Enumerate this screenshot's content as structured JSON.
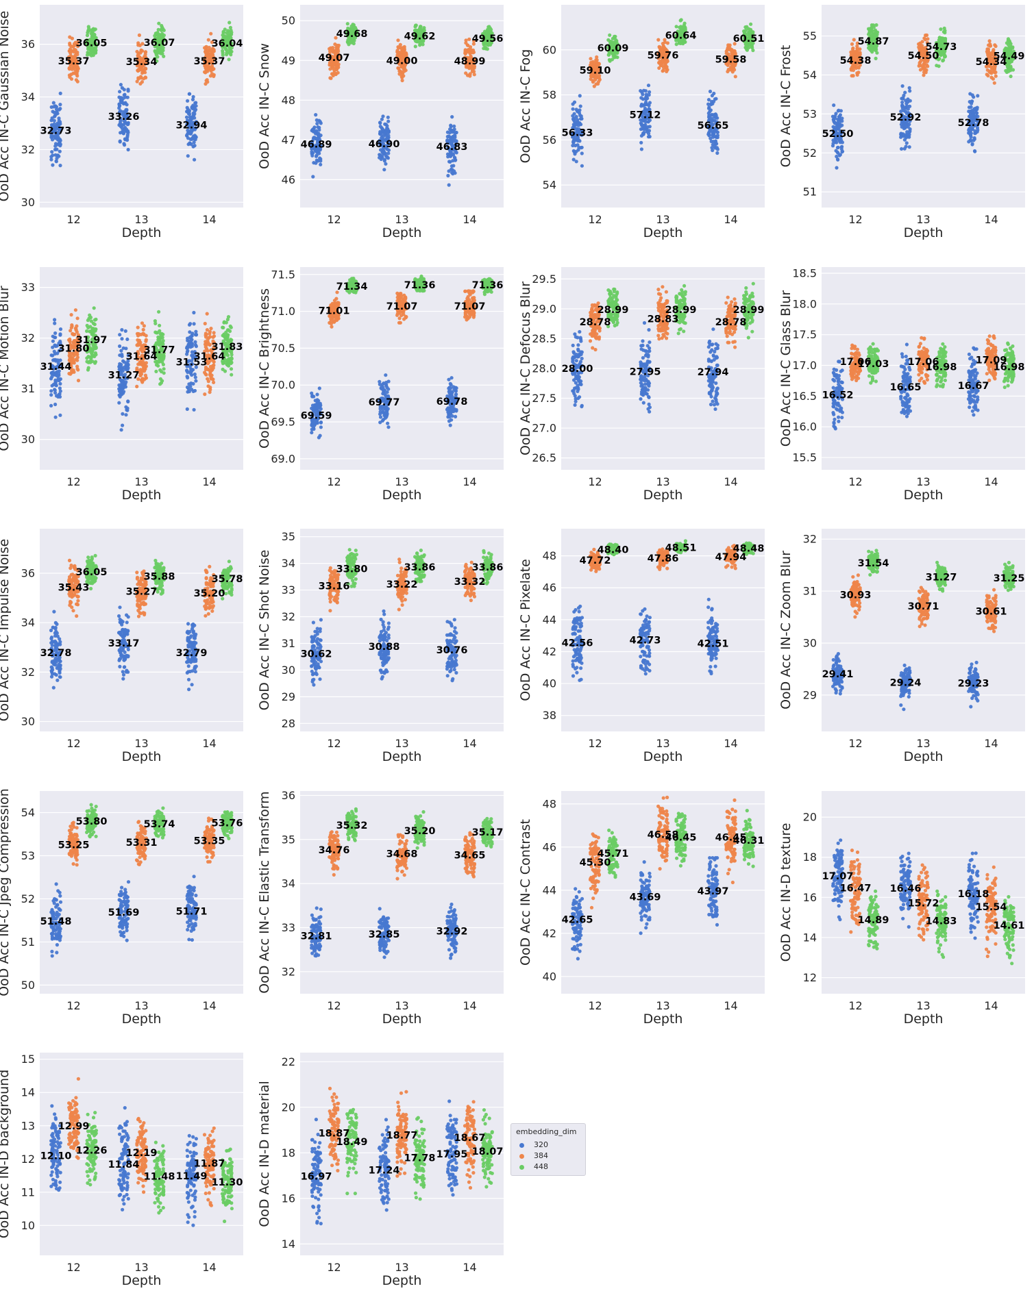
{
  "colors": {
    "d320": "#4878d0",
    "d384": "#ee854a",
    "d448": "#6acc64",
    "panel_bg": "#eaeaf2",
    "grid": "#ffffff"
  },
  "legend": {
    "title": "embedding_dim",
    "items": [
      "320",
      "384",
      "448"
    ]
  },
  "chart_data": [
    {
      "type": "scatter",
      "ylabel": "OoD Acc IN-C Gaussian Noise",
      "xlabel": "Depth",
      "categories": [
        "12",
        "13",
        "14"
      ],
      "ylim": [
        29.8,
        37.5
      ],
      "yticks": [
        30,
        32,
        34,
        36
      ],
      "legend_placement": "outside-right",
      "series": [
        {
          "name": "320",
          "values": [
            32.73,
            33.26,
            32.94
          ],
          "spread": [
            30.0,
            35.1
          ]
        },
        {
          "name": "384",
          "values": [
            35.37,
            35.34,
            35.37
          ],
          "spread": [
            33.6,
            36.9
          ]
        },
        {
          "name": "448",
          "values": [
            36.05,
            36.07,
            36.04
          ],
          "spread": [
            34.6,
            37.3
          ]
        }
      ]
    },
    {
      "type": "scatter",
      "ylabel": "OoD Acc IN-C Snow",
      "xlabel": "Depth",
      "categories": [
        "12",
        "13",
        "14"
      ],
      "ylim": [
        45.3,
        50.4
      ],
      "yticks": [
        46,
        47,
        48,
        49,
        50
      ],
      "series": [
        {
          "name": "320",
          "values": [
            46.89,
            46.9,
            46.83
          ],
          "spread": [
            45.5,
            48.2
          ]
        },
        {
          "name": "384",
          "values": [
            49.07,
            49.0,
            48.99
          ],
          "spread": [
            48.0,
            50.0
          ]
        },
        {
          "name": "448",
          "values": [
            49.68,
            49.62,
            49.56
          ],
          "spread": [
            49.0,
            50.2
          ]
        }
      ]
    },
    {
      "type": "scatter",
      "ylabel": "OoD Acc IN-C Fog",
      "xlabel": "Depth",
      "categories": [
        "12",
        "13",
        "14"
      ],
      "ylim": [
        53.0,
        62.0
      ],
      "yticks": [
        54,
        56,
        58,
        60
      ],
      "series": [
        {
          "name": "320",
          "values": [
            56.33,
            57.12,
            56.65
          ],
          "spread": [
            53.3,
            59.0
          ]
        },
        {
          "name": "384",
          "values": [
            59.1,
            59.76,
            59.58
          ],
          "spread": [
            58.3,
            61.0
          ]
        },
        {
          "name": "448",
          "values": [
            60.09,
            60.64,
            60.51
          ],
          "spread": [
            59.5,
            61.8
          ]
        }
      ]
    },
    {
      "type": "scatter",
      "ylabel": "OoD Acc IN-C Frost",
      "xlabel": "Depth",
      "categories": [
        "12",
        "13",
        "14"
      ],
      "ylim": [
        50.6,
        55.8
      ],
      "yticks": [
        51,
        52,
        53,
        54,
        55
      ],
      "series": [
        {
          "name": "320",
          "values": [
            52.5,
            52.92,
            52.78
          ],
          "spread": [
            50.8,
            53.9
          ]
        },
        {
          "name": "384",
          "values": [
            54.38,
            54.5,
            54.34
          ],
          "spread": [
            53.3,
            55.3
          ]
        },
        {
          "name": "448",
          "values": [
            54.87,
            54.73,
            54.49
          ],
          "spread": [
            53.9,
            55.6
          ]
        }
      ]
    },
    {
      "type": "scatter",
      "ylabel": "OoD Acc IN-C Motion Blur",
      "xlabel": "Depth",
      "categories": [
        "12",
        "13",
        "14"
      ],
      "ylim": [
        29.4,
        33.4
      ],
      "yticks": [
        30,
        31,
        32,
        33
      ],
      "series": [
        {
          "name": "320",
          "values": [
            31.44,
            31.27,
            31.53
          ],
          "spread": [
            29.6,
            33.0
          ]
        },
        {
          "name": "384",
          "values": [
            31.8,
            31.64,
            31.64
          ],
          "spread": [
            30.1,
            32.8
          ]
        },
        {
          "name": "448",
          "values": [
            31.97,
            31.77,
            31.83
          ],
          "spread": [
            30.4,
            32.9
          ]
        }
      ]
    },
    {
      "type": "scatter",
      "ylabel": "OoD Acc IN-C Brightness",
      "xlabel": "Depth",
      "categories": [
        "12",
        "13",
        "14"
      ],
      "ylim": [
        68.85,
        71.6
      ],
      "yticks": [
        69.0,
        69.5,
        70.0,
        70.5,
        71.0,
        71.5
      ],
      "series": [
        {
          "name": "320",
          "values": [
            69.59,
            69.77,
            69.78
          ],
          "spread": [
            68.9,
            70.2
          ]
        },
        {
          "name": "384",
          "values": [
            71.01,
            71.07,
            71.07
          ],
          "spread": [
            70.5,
            71.3
          ]
        },
        {
          "name": "448",
          "values": [
            71.34,
            71.36,
            71.36
          ],
          "spread": [
            71.15,
            71.55
          ]
        }
      ]
    },
    {
      "type": "scatter",
      "ylabel": "OoD Acc IN-C Defocus Blur",
      "xlabel": "Depth",
      "categories": [
        "12",
        "13",
        "14"
      ],
      "ylim": [
        26.3,
        29.7
      ],
      "yticks": [
        26.5,
        27.0,
        27.5,
        28.0,
        28.5,
        29.0,
        29.5
      ],
      "series": [
        {
          "name": "320",
          "values": [
            28.0,
            27.95,
            27.94
          ],
          "spread": [
            26.5,
            29.3
          ]
        },
        {
          "name": "384",
          "values": [
            28.78,
            28.83,
            28.78
          ],
          "spread": [
            27.8,
            29.5
          ]
        },
        {
          "name": "448",
          "values": [
            28.99,
            28.99,
            28.99
          ],
          "spread": [
            28.1,
            29.6
          ]
        }
      ]
    },
    {
      "type": "scatter",
      "ylabel": "OoD Acc IN-C Glass Blur",
      "xlabel": "Depth",
      "categories": [
        "12",
        "13",
        "14"
      ],
      "ylim": [
        15.3,
        18.6
      ],
      "yticks": [
        15.5,
        16.0,
        16.5,
        17.0,
        17.5,
        18.0,
        18.5
      ],
      "series": [
        {
          "name": "320",
          "values": [
            16.52,
            16.65,
            16.67
          ],
          "spread": [
            15.4,
            17.8
          ]
        },
        {
          "name": "384",
          "values": [
            17.06,
            17.06,
            17.09
          ],
          "spread": [
            16.4,
            17.8
          ]
        },
        {
          "name": "448",
          "values": [
            17.03,
            16.98,
            16.98
          ],
          "spread": [
            16.3,
            17.7
          ]
        }
      ]
    },
    {
      "type": "scatter",
      "ylabel": "OoD Acc IN-C Impulse Noise",
      "xlabel": "Depth",
      "categories": [
        "12",
        "13",
        "14"
      ],
      "ylim": [
        29.6,
        37.8
      ],
      "yticks": [
        30,
        32,
        34,
        36
      ],
      "series": [
        {
          "name": "320",
          "values": [
            32.78,
            33.17,
            32.79
          ],
          "spread": [
            29.9,
            35.3
          ]
        },
        {
          "name": "384",
          "values": [
            35.43,
            35.27,
            35.2
          ],
          "spread": [
            33.5,
            37.2
          ]
        },
        {
          "name": "448",
          "values": [
            36.05,
            35.88,
            35.78
          ],
          "spread": [
            34.9,
            37.5
          ]
        }
      ]
    },
    {
      "type": "scatter",
      "ylabel": "OoD Acc IN-C Shot Noise",
      "xlabel": "Depth",
      "categories": [
        "12",
        "13",
        "14"
      ],
      "ylim": [
        27.7,
        35.3
      ],
      "yticks": [
        28,
        29,
        30,
        31,
        32,
        33,
        34,
        35
      ],
      "series": [
        {
          "name": "320",
          "values": [
            30.62,
            30.88,
            30.76
          ],
          "spread": [
            28.0,
            32.6
          ]
        },
        {
          "name": "384",
          "values": [
            33.16,
            33.22,
            33.32
          ],
          "spread": [
            31.5,
            34.4
          ]
        },
        {
          "name": "448",
          "values": [
            33.8,
            33.86,
            33.86
          ],
          "spread": [
            32.4,
            35.0
          ]
        }
      ]
    },
    {
      "type": "scatter",
      "ylabel": "OoD Acc IN-C Pixelate",
      "xlabel": "Depth",
      "categories": [
        "12",
        "13",
        "14"
      ],
      "ylim": [
        37.0,
        49.7
      ],
      "yticks": [
        38,
        40,
        42,
        44,
        46,
        48
      ],
      "series": [
        {
          "name": "320",
          "values": [
            42.56,
            42.73,
            42.51
          ],
          "spread": [
            37.3,
            46.0
          ]
        },
        {
          "name": "384",
          "values": [
            47.72,
            47.86,
            47.94
          ],
          "spread": [
            46.6,
            49.0
          ]
        },
        {
          "name": "448",
          "values": [
            48.4,
            48.51,
            48.48
          ],
          "spread": [
            47.8,
            49.2
          ]
        }
      ]
    },
    {
      "type": "scatter",
      "ylabel": "OoD Acc IN-C Zoom Blur",
      "xlabel": "Depth",
      "categories": [
        "12",
        "13",
        "14"
      ],
      "ylim": [
        28.3,
        32.2
      ],
      "yticks": [
        29,
        30,
        31,
        32
      ],
      "series": [
        {
          "name": "320",
          "values": [
            29.41,
            29.24,
            29.23
          ],
          "spread": [
            28.5,
            30.1
          ]
        },
        {
          "name": "384",
          "values": [
            30.93,
            30.71,
            30.61
          ],
          "spread": [
            30.0,
            31.5
          ]
        },
        {
          "name": "448",
          "values": [
            31.54,
            31.27,
            31.25
          ],
          "spread": [
            30.9,
            32.0
          ]
        }
      ]
    },
    {
      "type": "scatter",
      "ylabel": "OoD Acc IN-C Jpeg Compression",
      "xlabel": "Depth",
      "categories": [
        "12",
        "13",
        "14"
      ],
      "ylim": [
        49.8,
        54.5
      ],
      "yticks": [
        50,
        51,
        52,
        53,
        54
      ],
      "series": [
        {
          "name": "320",
          "values": [
            51.48,
            51.69,
            51.71
          ],
          "spread": [
            49.9,
            52.8
          ]
        },
        {
          "name": "384",
          "values": [
            53.25,
            53.31,
            53.35
          ],
          "spread": [
            52.3,
            54.2
          ]
        },
        {
          "name": "448",
          "values": [
            53.8,
            53.74,
            53.76
          ],
          "spread": [
            53.0,
            54.3
          ]
        }
      ]
    },
    {
      "type": "scatter",
      "ylabel": "OoD Acc IN-C Elastic Transform",
      "xlabel": "Depth",
      "categories": [
        "12",
        "13",
        "14"
      ],
      "ylim": [
        31.5,
        36.1
      ],
      "yticks": [
        32,
        33,
        34,
        35,
        36
      ],
      "series": [
        {
          "name": "320",
          "values": [
            32.81,
            32.85,
            32.92
          ],
          "spread": [
            31.7,
            33.9
          ]
        },
        {
          "name": "384",
          "values": [
            34.76,
            34.68,
            34.65
          ],
          "spread": [
            33.8,
            35.8
          ]
        },
        {
          "name": "448",
          "values": [
            35.32,
            35.2,
            35.17
          ],
          "spread": [
            34.6,
            36.0
          ]
        }
      ]
    },
    {
      "type": "scatter",
      "ylabel": "OoD Acc IN-C Contrast",
      "xlabel": "Depth",
      "categories": [
        "12",
        "13",
        "14"
      ],
      "ylim": [
        39.2,
        48.6
      ],
      "yticks": [
        40,
        42,
        44,
        46,
        48
      ],
      "series": [
        {
          "name": "320",
          "values": [
            42.65,
            43.69,
            43.97
          ],
          "spread": [
            39.4,
            45.5
          ]
        },
        {
          "name": "384",
          "values": [
            45.3,
            46.58,
            46.45
          ],
          "spread": [
            41.7,
            48.3
          ]
        },
        {
          "name": "448",
          "values": [
            45.71,
            46.45,
            46.31
          ],
          "spread": [
            43.2,
            48.0
          ]
        }
      ]
    },
    {
      "type": "scatter",
      "ylabel": "OoD Acc IN-D texture",
      "xlabel": "Depth",
      "categories": [
        "12",
        "13",
        "14"
      ],
      "ylim": [
        11.2,
        21.3
      ],
      "yticks": [
        12,
        14,
        16,
        18,
        20
      ],
      "series": [
        {
          "name": "320",
          "values": [
            17.07,
            16.46,
            16.18
          ],
          "spread": [
            12.8,
            21.0
          ]
        },
        {
          "name": "384",
          "values": [
            16.47,
            15.72,
            15.54
          ],
          "spread": [
            12.8,
            20.6
          ]
        },
        {
          "name": "448",
          "values": [
            14.89,
            14.83,
            14.61
          ],
          "spread": [
            11.5,
            18.2
          ]
        }
      ]
    },
    {
      "type": "scatter",
      "ylabel": "OoD Acc IN-D background",
      "xlabel": "Depth",
      "categories": [
        "12",
        "13",
        "14"
      ],
      "ylim": [
        9.1,
        15.2
      ],
      "yticks": [
        10,
        11,
        12,
        13,
        14,
        15
      ],
      "series": [
        {
          "name": "320",
          "values": [
            12.1,
            11.84,
            11.49
          ],
          "spread": [
            9.3,
            14.8
          ]
        },
        {
          "name": "384",
          "values": [
            12.99,
            12.19,
            11.87
          ],
          "spread": [
            10.6,
            14.9
          ]
        },
        {
          "name": "448",
          "values": [
            12.26,
            11.48,
            11.3
          ],
          "spread": [
            9.6,
            13.9
          ]
        }
      ]
    },
    {
      "type": "scatter",
      "ylabel": "OoD Acc IN-D material",
      "xlabel": "Depth",
      "categories": [
        "12",
        "13",
        "14"
      ],
      "ylim": [
        13.5,
        22.4
      ],
      "yticks": [
        14,
        16,
        18,
        20,
        22
      ],
      "series": [
        {
          "name": "320",
          "values": [
            16.97,
            17.24,
            17.95
          ],
          "spread": [
            13.8,
            21.4
          ]
        },
        {
          "name": "384",
          "values": [
            18.87,
            18.77,
            18.67
          ],
          "spread": [
            14.9,
            22.3
          ]
        },
        {
          "name": "448",
          "values": [
            18.49,
            17.78,
            18.07
          ],
          "spread": [
            14.3,
            21.3
          ]
        }
      ]
    }
  ]
}
